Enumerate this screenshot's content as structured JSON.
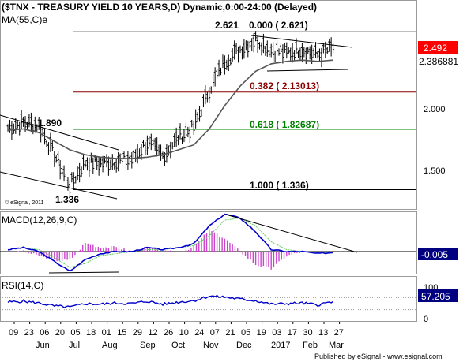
{
  "header": {
    "title": "($TNX - TREASURY YIELD 10 YEARS,D) Dynamic,0:00-24:00 (Delayed)",
    "ma_label": "MA(55,C)e",
    "watermark": "© eSignal, 2011"
  },
  "price_panel": {
    "y_ticks": [
      "2.000",
      "1.500"
    ],
    "last_price": "2.492",
    "ma_value": "2.386881",
    "annotations": [
      "2.621",
      "1.890",
      "1.336"
    ],
    "fib_levels": [
      {
        "label": "0.000 ( 2.621)",
        "value": 2.621,
        "color": "#000000"
      },
      {
        "label": "0.382 ( 2.13013)",
        "value": 2.13013,
        "color": "#8b0000"
      },
      {
        "label": "0.618 ( 1.82687)",
        "value": 1.82687,
        "color": "#008000"
      },
      {
        "label": "1.000 ( 1.336)",
        "value": 1.336,
        "color": "#000000"
      }
    ]
  },
  "macd_panel": {
    "label": "MACD(12,26,9,C)",
    "value": "-0.005"
  },
  "rsi_panel": {
    "label": "RSI(14,C)",
    "value": "57.205",
    "y_ticks": [
      "100",
      "0"
    ]
  },
  "x_axis": {
    "day_ticks": [
      "09",
      "23",
      "06",
      "20",
      "05",
      "18",
      "01",
      "15",
      "29",
      "12",
      "26",
      "10",
      "24",
      "07",
      "21",
      "05",
      "19",
      "03",
      "17",
      "30",
      "13",
      "27"
    ],
    "month_ticks": [
      "Jun",
      "Jul",
      "Aug",
      "Sep",
      "Oct",
      "Nov",
      "Dec",
      "2017",
      "Feb",
      "Mar"
    ]
  },
  "footer": {
    "text": "Published by eSignal - www.esignal.com"
  },
  "colors": {
    "price_bars": "#000000",
    "ma_line": "#555555",
    "macd_line": "#0000cc",
    "signal_line": "#66cc66",
    "histogram": "#cc44cc",
    "rsi_line": "#0000cc",
    "last_price_box": "#ff0000",
    "macd_box": "#000080",
    "rsi_box": "#000080"
  },
  "chart_data": [
    {
      "type": "line",
      "title": "($TNX - TREASURY YIELD 10 YEARS,D) Dynamic,0:00-24:00 (Delayed)",
      "x": [
        "09",
        "23",
        "06",
        "20",
        "05",
        "18",
        "01",
        "15",
        "29",
        "12",
        "26",
        "10",
        "24",
        "07",
        "21",
        "05",
        "19",
        "03",
        "17",
        "30",
        "13",
        "27"
      ],
      "ylim": [
        1.28,
        2.72
      ],
      "series": [
        {
          "name": "",
          "values": [
            1.84,
            1.88,
            1.86,
            1.62,
            1.37,
            1.56,
            1.55,
            1.57,
            1.58,
            1.72,
            1.61,
            1.76,
            1.84,
            2.15,
            2.38,
            2.48,
            2.56,
            2.47,
            2.45,
            2.48,
            2.43,
            2.49
          ]
        },
        {
          "name": "MA(55,C)e",
          "values": [
            1.82,
            1.83,
            1.8,
            1.73,
            1.66,
            1.62,
            1.6,
            1.59,
            1.59,
            1.6,
            1.62,
            1.66,
            1.7,
            1.83,
            2.02,
            2.18,
            2.3,
            2.36,
            2.38,
            2.39,
            2.38,
            2.39
          ]
        }
      ],
      "levels": [
        2.621,
        2.13013,
        1.82687,
        1.336
      ]
    },
    {
      "type": "line",
      "title": "MACD(12,26,9,C)",
      "x": [
        "09",
        "23",
        "06",
        "20",
        "05",
        "18",
        "01",
        "15",
        "29",
        "12",
        "26",
        "10",
        "24",
        "07",
        "21",
        "05",
        "19",
        "03",
        "17",
        "30",
        "13",
        "27"
      ],
      "series": [
        {
          "name": "MACD",
          "values": [
            0.01,
            0.02,
            0.0,
            -0.05,
            -0.1,
            -0.04,
            -0.01,
            0.0,
            0.0,
            0.02,
            0.01,
            0.02,
            0.04,
            0.13,
            0.19,
            0.17,
            0.1,
            0.01,
            0.0,
            0.0,
            -0.01,
            -0.005
          ]
        },
        {
          "name": "Signal",
          "values": [
            0.01,
            0.02,
            0.01,
            -0.03,
            -0.08,
            -0.06,
            -0.02,
            -0.01,
            0.0,
            0.01,
            0.01,
            0.02,
            0.03,
            0.08,
            0.16,
            0.17,
            0.13,
            0.05,
            0.01,
            0.0,
            -0.005,
            -0.005
          ]
        }
      ]
    },
    {
      "type": "line",
      "title": "RSI(14,C)",
      "x": [
        "09",
        "23",
        "06",
        "20",
        "05",
        "18",
        "01",
        "15",
        "29",
        "12",
        "26",
        "10",
        "24",
        "07",
        "21",
        "05",
        "19",
        "03",
        "17",
        "30",
        "13",
        "27"
      ],
      "ylim": [
        0,
        100
      ],
      "series": [
        {
          "name": "RSI",
          "values": [
            55,
            58,
            52,
            42,
            38,
            50,
            48,
            52,
            50,
            58,
            48,
            55,
            60,
            75,
            72,
            65,
            60,
            48,
            50,
            52,
            46,
            57.205
          ]
        }
      ]
    }
  ]
}
